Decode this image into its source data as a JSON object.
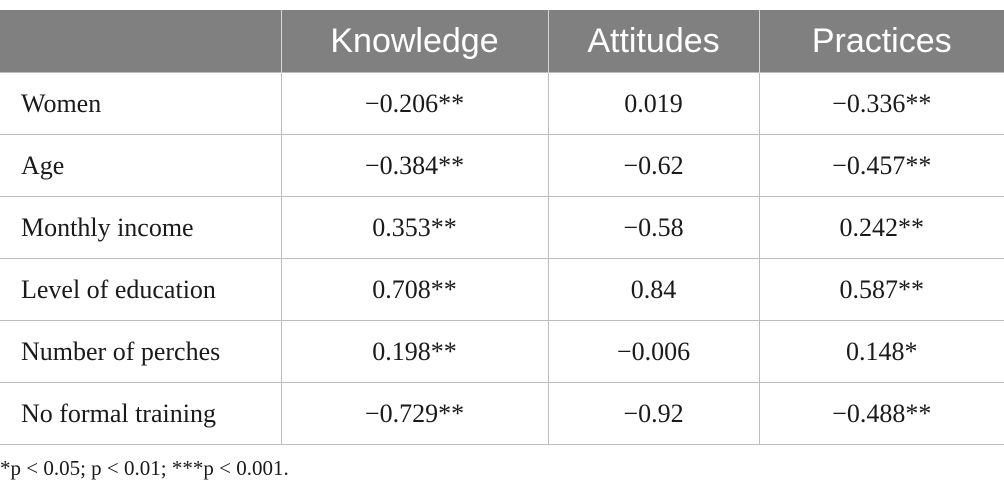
{
  "table": {
    "headers": [
      "",
      "Knowledge",
      "Attitudes",
      "Practices"
    ],
    "rows": [
      [
        "Women",
        "−0.206**",
        "0.019",
        "−0.336**"
      ],
      [
        "Age",
        "−0.384**",
        "−0.62",
        "−0.457**"
      ],
      [
        "Monthly income",
        "0.353**",
        "−0.58",
        "0.242**"
      ],
      [
        "Level of education",
        "0.708**",
        "0.84",
        "0.587**"
      ],
      [
        "Number of perches",
        "0.198**",
        "−0.006",
        "0.148*"
      ],
      [
        "No formal training",
        "−0.729**",
        "−0.92",
        "−0.488**"
      ]
    ]
  },
  "footnote": {
    "text": "*p < 0.05; p < 0.01; ***p < 0.001."
  }
}
